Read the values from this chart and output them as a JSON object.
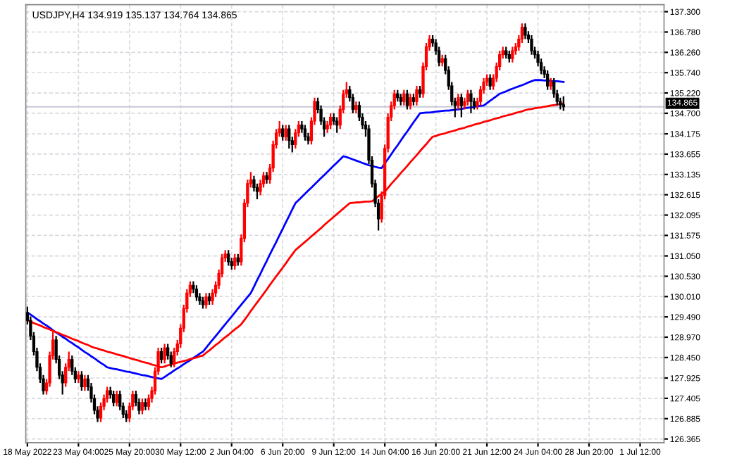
{
  "chart_data": {
    "type": "candlestick",
    "title": "USDJPY,H4 134.919 135.137 134.764 134.865",
    "categories": [
      "18 May 2022",
      null,
      null,
      null,
      null,
      null,
      null,
      null,
      null,
      null,
      null,
      null,
      null,
      null,
      null,
      null,
      "23 May 04:00",
      null,
      null,
      null,
      null,
      null,
      null,
      null,
      null,
      null,
      null,
      null,
      null,
      null,
      null,
      null,
      "25 May 20:00",
      null,
      null,
      null,
      null,
      null,
      null,
      null,
      null,
      null,
      null,
      null,
      null,
      null,
      null,
      null,
      "30 May 12:00",
      null,
      null,
      null,
      null,
      null,
      null,
      null,
      null,
      null,
      null,
      null,
      null,
      null,
      null,
      null,
      "2 Jun 04:00",
      null,
      null,
      null,
      null,
      null,
      null,
      null,
      null,
      null,
      null,
      null,
      null,
      null,
      null,
      null,
      "6 Jun 20:00",
      null,
      null,
      null,
      null,
      null,
      null,
      null,
      null,
      null,
      null,
      null,
      null,
      null,
      null,
      null,
      "9 Jun 12:00",
      null,
      null,
      null,
      null,
      null,
      null,
      null,
      null,
      null,
      null,
      null,
      null,
      null,
      null,
      null,
      "14 Jun 04:00",
      null,
      null,
      null,
      null,
      null,
      null,
      null,
      null,
      null,
      null,
      null,
      null,
      null,
      null,
      null,
      "16 Jun 20:00",
      null,
      null,
      null,
      null,
      null,
      null,
      null,
      null,
      null,
      null,
      null,
      null,
      null,
      null,
      null,
      "21 Jun 12:00",
      null,
      null,
      null,
      null,
      null,
      null,
      null,
      null,
      null,
      null,
      null,
      null,
      null,
      null,
      null,
      "24 Jun 04:00",
      null,
      null,
      null,
      null,
      null,
      null,
      null,
      null,
      null,
      null,
      null,
      null,
      null,
      null,
      null,
      "28 Jun 20:00",
      null,
      null,
      null,
      null,
      null,
      null,
      null,
      null,
      null,
      null,
      null,
      null,
      null,
      null,
      null,
      "1 Jul 12:00",
      null,
      null,
      null,
      null,
      null,
      null,
      null
    ],
    "colors": [
      "#000000",
      "#000000",
      "#000000",
      "#000000",
      "#000000",
      "#000000",
      "#ff0000",
      "#ff0000",
      "#ff0000",
      "#000000",
      "#000000",
      "#000000",
      "#ff0000",
      "#ff0000",
      "#000000",
      "#000000",
      "#ff0000",
      "#000000",
      "#ff0000",
      "#000000",
      "#000000",
      "#000000",
      "#000000",
      "#ff0000",
      "#ff0000",
      "#ff0000",
      "#000000",
      "#000000",
      "#ff0000",
      "#000000",
      "#000000",
      "#000000",
      "#ff0000",
      "#ff0000",
      "#000000",
      "#000000",
      "#ff0000",
      "#000000",
      "#ff0000",
      "#ff0000",
      "#ff0000",
      "#ff0000",
      "#000000",
      "#ff0000",
      "#000000",
      "#000000",
      "#ff0000",
      "#ff0000",
      "#ff0000",
      "#ff0000",
      "#ff0000",
      "#ff0000",
      "#000000",
      "#000000",
      "#000000",
      "#000000",
      "#ff0000",
      "#000000",
      "#ff0000",
      "#ff0000",
      "#ff0000",
      "#ff0000",
      "#ff0000",
      "#000000",
      "#000000",
      "#ff0000",
      "#000000",
      "#ff0000",
      "#ff0000",
      "#ff0000",
      "#ff0000",
      "#000000",
      "#000000",
      "#ff0000",
      "#ff0000",
      "#000000",
      "#ff0000",
      "#ff0000",
      "#ff0000",
      "#ff0000",
      "#000000",
      "#ff0000",
      "#000000",
      "#000000",
      "#ff0000",
      "#ff0000",
      "#000000",
      "#000000",
      "#000000",
      "#ff0000",
      "#ff0000",
      "#000000",
      "#000000",
      "#000000",
      "#ff0000",
      "#ff0000",
      "#000000",
      "#000000",
      "#ff0000",
      "#ff0000",
      "#ff0000",
      "#000000",
      "#000000",
      "#ff0000",
      "#000000",
      "#000000",
      "#000000",
      "#000000",
      "#000000",
      "#000000",
      "#000000",
      "#ff0000",
      "#ff0000",
      "#ff0000",
      "#ff0000",
      "#ff0000",
      "#000000",
      "#000000",
      "#ff0000",
      "#000000",
      "#ff0000",
      "#000000",
      "#ff0000",
      "#000000",
      "#ff0000",
      "#ff0000",
      "#ff0000",
      "#000000",
      "#000000",
      "#000000",
      "#ff0000",
      "#000000",
      "#000000",
      "#000000",
      "#000000",
      "#ff0000",
      "#000000",
      "#ff0000",
      "#ff0000",
      "#000000",
      "#000000",
      "#ff0000",
      "#ff0000",
      "#ff0000",
      "#ff0000",
      "#000000",
      "#ff0000",
      "#ff0000",
      "#ff0000",
      "#ff0000",
      "#000000",
      "#000000",
      "#ff0000",
      "#ff0000",
      "#ff0000",
      "#ff0000",
      "#000000",
      "#000000",
      "#000000",
      "#000000",
      "#000000",
      "#000000",
      "#000000",
      "#000000",
      "#ff0000",
      "#000000",
      "#000000",
      "#000000",
      "#000000",
      null,
      null,
      null,
      null,
      null,
      null,
      null,
      null,
      null,
      null,
      null,
      null,
      null,
      null,
      null,
      null,
      null,
      null,
      null,
      null,
      null,
      null,
      null,
      null,
      null,
      null,
      null,
      null,
      null,
      null,
      null
    ],
    "ohlc": [
      [
        129.6,
        129.75,
        129.3,
        129.4
      ],
      [
        129.4,
        129.5,
        128.9,
        129.0
      ],
      [
        129.0,
        129.1,
        128.5,
        128.6
      ],
      [
        128.6,
        128.7,
        128.1,
        128.2
      ],
      [
        128.2,
        128.3,
        127.8,
        127.9
      ],
      [
        127.9,
        128.0,
        127.5,
        127.6
      ],
      [
        127.6,
        127.9,
        127.5,
        127.8
      ],
      [
        127.8,
        128.6,
        127.7,
        128.5
      ],
      [
        128.5,
        129.1,
        128.4,
        128.9
      ],
      [
        128.9,
        129.0,
        128.3,
        128.4
      ],
      [
        128.4,
        128.5,
        127.9,
        128.0
      ],
      [
        128.0,
        128.1,
        127.5,
        127.8
      ],
      [
        127.8,
        128.3,
        127.7,
        128.2
      ],
      [
        128.2,
        128.6,
        128.1,
        128.4
      ],
      [
        128.4,
        128.5,
        128.0,
        128.1
      ],
      [
        128.1,
        128.2,
        127.8,
        127.9
      ],
      [
        127.9,
        128.1,
        127.8,
        128.0
      ],
      [
        128.0,
        128.1,
        127.6,
        127.7
      ],
      [
        127.7,
        128.0,
        127.6,
        127.9
      ],
      [
        127.9,
        128.0,
        127.6,
        127.7
      ],
      [
        127.7,
        127.8,
        127.3,
        127.4
      ],
      [
        127.4,
        127.5,
        127.0,
        127.1
      ],
      [
        127.1,
        127.2,
        126.8,
        126.9
      ],
      [
        126.9,
        127.3,
        126.8,
        127.2
      ],
      [
        127.2,
        127.5,
        127.1,
        127.4
      ],
      [
        127.4,
        127.7,
        127.3,
        127.6
      ],
      [
        127.6,
        127.7,
        127.4,
        127.5
      ],
      [
        127.5,
        127.6,
        127.2,
        127.3
      ],
      [
        127.3,
        127.6,
        127.2,
        127.5
      ],
      [
        127.5,
        127.6,
        127.1,
        127.2
      ],
      [
        127.2,
        127.3,
        126.9,
        127.0
      ],
      [
        127.0,
        127.1,
        126.8,
        126.9
      ],
      [
        126.9,
        127.3,
        126.8,
        127.2
      ],
      [
        127.2,
        127.6,
        127.1,
        127.5
      ],
      [
        127.5,
        127.6,
        127.2,
        127.3
      ],
      [
        127.3,
        127.4,
        127.0,
        127.1
      ],
      [
        127.1,
        127.4,
        127.0,
        127.3
      ],
      [
        127.3,
        127.4,
        127.1,
        127.2
      ],
      [
        127.2,
        127.5,
        127.1,
        127.4
      ],
      [
        127.4,
        127.7,
        127.3,
        127.6
      ],
      [
        127.6,
        128.2,
        127.5,
        128.1
      ],
      [
        128.1,
        128.7,
        128.0,
        128.6
      ],
      [
        128.6,
        128.7,
        128.3,
        128.4
      ],
      [
        128.4,
        128.8,
        128.3,
        128.7
      ],
      [
        128.7,
        128.8,
        128.4,
        128.5
      ],
      [
        128.5,
        128.6,
        128.2,
        128.3
      ],
      [
        128.3,
        128.7,
        128.2,
        128.6
      ],
      [
        128.6,
        128.9,
        128.5,
        128.8
      ],
      [
        128.8,
        129.3,
        128.7,
        129.2
      ],
      [
        129.2,
        129.8,
        129.1,
        129.7
      ],
      [
        129.7,
        130.2,
        129.6,
        130.1
      ],
      [
        130.1,
        130.4,
        130.0,
        130.3
      ],
      [
        130.3,
        130.4,
        130.1,
        130.2
      ],
      [
        130.2,
        130.3,
        129.9,
        130.0
      ],
      [
        130.0,
        130.1,
        129.8,
        129.9
      ],
      [
        129.9,
        130.0,
        129.7,
        129.8
      ],
      [
        129.8,
        130.1,
        129.7,
        130.0
      ],
      [
        130.0,
        130.1,
        129.8,
        129.9
      ],
      [
        129.9,
        130.2,
        129.8,
        130.1
      ],
      [
        130.1,
        130.4,
        130.0,
        130.3
      ],
      [
        130.3,
        130.7,
        130.2,
        130.6
      ],
      [
        130.6,
        131.1,
        130.5,
        131.0
      ],
      [
        131.0,
        131.2,
        130.9,
        131.1
      ],
      [
        131.1,
        131.2,
        130.8,
        130.9
      ],
      [
        130.9,
        131.0,
        130.7,
        130.8
      ],
      [
        130.8,
        131.1,
        130.7,
        131.0
      ],
      [
        131.0,
        131.1,
        130.8,
        130.9
      ],
      [
        130.9,
        131.6,
        130.8,
        131.5
      ],
      [
        131.5,
        132.5,
        131.4,
        132.4
      ],
      [
        132.4,
        133.0,
        132.3,
        132.9
      ],
      [
        132.9,
        133.2,
        132.8,
        133.0
      ],
      [
        133.0,
        133.1,
        132.7,
        132.8
      ],
      [
        132.8,
        132.9,
        132.5,
        132.7
      ],
      [
        132.7,
        133.0,
        132.6,
        132.9
      ],
      [
        132.9,
        133.2,
        132.8,
        133.1
      ],
      [
        133.1,
        133.2,
        132.9,
        133.0
      ],
      [
        133.0,
        133.4,
        132.9,
        133.3
      ],
      [
        133.3,
        134.0,
        133.2,
        133.9
      ],
      [
        133.9,
        134.3,
        133.8,
        134.2
      ],
      [
        134.2,
        134.5,
        134.1,
        134.3
      ],
      [
        134.3,
        134.4,
        134.0,
        134.1
      ],
      [
        134.1,
        134.4,
        134.0,
        134.3
      ],
      [
        134.3,
        134.4,
        133.8,
        134.0
      ],
      [
        134.0,
        134.1,
        133.7,
        133.9
      ],
      [
        133.9,
        134.3,
        133.8,
        134.2
      ],
      [
        134.2,
        134.5,
        134.1,
        134.4
      ],
      [
        134.4,
        134.5,
        134.2,
        134.3
      ],
      [
        134.3,
        134.4,
        134.0,
        134.1
      ],
      [
        134.1,
        134.2,
        133.9,
        134.0
      ],
      [
        134.0,
        134.6,
        133.9,
        134.5
      ],
      [
        134.5,
        135.1,
        134.4,
        135.0
      ],
      [
        135.0,
        135.1,
        134.7,
        134.8
      ],
      [
        134.8,
        134.9,
        134.4,
        134.5
      ],
      [
        134.5,
        134.6,
        134.1,
        134.3
      ],
      [
        134.3,
        134.5,
        134.2,
        134.4
      ],
      [
        134.4,
        134.7,
        134.3,
        134.6
      ],
      [
        134.6,
        134.7,
        134.4,
        134.5
      ],
      [
        134.5,
        134.6,
        134.2,
        134.4
      ],
      [
        134.4,
        134.9,
        134.3,
        134.8
      ],
      [
        134.8,
        135.3,
        134.7,
        135.2
      ],
      [
        135.2,
        135.5,
        135.1,
        135.3
      ],
      [
        135.3,
        135.4,
        135.0,
        135.1
      ],
      [
        135.1,
        135.2,
        134.7,
        134.8
      ],
      [
        134.8,
        135.0,
        134.7,
        134.9
      ],
      [
        134.9,
        135.0,
        134.5,
        134.6
      ],
      [
        134.6,
        134.7,
        134.3,
        134.4
      ],
      [
        134.4,
        134.5,
        134.1,
        134.3
      ],
      [
        134.3,
        134.4,
        133.4,
        133.5
      ],
      [
        133.5,
        133.6,
        132.8,
        132.9
      ],
      [
        132.9,
        133.0,
        132.3,
        132.4
      ],
      [
        132.4,
        132.5,
        131.7,
        132.0
      ],
      [
        132.0,
        132.7,
        131.9,
        132.6
      ],
      [
        132.6,
        133.9,
        132.5,
        133.8
      ],
      [
        133.8,
        134.7,
        133.7,
        134.6
      ],
      [
        134.6,
        135.0,
        134.5,
        134.9
      ],
      [
        134.9,
        135.3,
        134.8,
        135.2
      ],
      [
        135.2,
        135.3,
        135.0,
        135.1
      ],
      [
        135.1,
        135.2,
        134.9,
        135.0
      ],
      [
        135.0,
        135.3,
        134.9,
        135.2
      ],
      [
        135.2,
        135.3,
        134.8,
        134.9
      ],
      [
        134.9,
        135.2,
        134.8,
        135.1
      ],
      [
        135.1,
        135.2,
        134.9,
        135.0
      ],
      [
        135.0,
        135.4,
        134.9,
        135.3
      ],
      [
        135.3,
        135.4,
        135.1,
        135.2
      ],
      [
        135.2,
        136.0,
        135.1,
        135.9
      ],
      [
        135.9,
        136.5,
        135.8,
        136.4
      ],
      [
        136.4,
        136.7,
        136.3,
        136.6
      ],
      [
        136.6,
        136.7,
        136.4,
        136.5
      ],
      [
        136.5,
        136.6,
        136.2,
        136.3
      ],
      [
        136.3,
        136.4,
        135.9,
        136.0
      ],
      [
        136.0,
        136.2,
        135.9,
        136.1
      ],
      [
        136.1,
        136.2,
        135.7,
        135.8
      ],
      [
        135.8,
        135.9,
        135.3,
        135.4
      ],
      [
        135.4,
        135.5,
        134.9,
        135.0
      ],
      [
        135.0,
        135.1,
        134.6,
        134.9
      ],
      [
        134.9,
        135.2,
        134.8,
        135.1
      ],
      [
        135.1,
        135.2,
        134.6,
        134.9
      ],
      [
        134.9,
        135.1,
        134.8,
        135.0
      ],
      [
        135.0,
        135.3,
        134.9,
        135.2
      ],
      [
        135.2,
        135.3,
        134.7,
        135.0
      ],
      [
        135.0,
        135.1,
        134.8,
        134.9
      ],
      [
        134.9,
        135.1,
        134.8,
        135.0
      ],
      [
        135.0,
        135.4,
        134.9,
        135.3
      ],
      [
        135.3,
        135.6,
        135.2,
        135.5
      ],
      [
        135.5,
        135.7,
        135.4,
        135.6
      ],
      [
        135.6,
        135.7,
        135.3,
        135.4
      ],
      [
        135.4,
        135.7,
        135.3,
        135.6
      ],
      [
        135.6,
        136.0,
        135.5,
        135.9
      ],
      [
        135.9,
        136.3,
        135.8,
        136.2
      ],
      [
        136.2,
        136.4,
        136.1,
        136.3
      ],
      [
        136.3,
        136.4,
        136.1,
        136.2
      ],
      [
        136.2,
        136.3,
        136.0,
        136.1
      ],
      [
        136.1,
        136.4,
        136.0,
        136.3
      ],
      [
        136.3,
        136.5,
        136.2,
        136.4
      ],
      [
        136.4,
        136.7,
        136.3,
        136.6
      ],
      [
        136.6,
        137.0,
        136.5,
        136.9
      ],
      [
        136.9,
        137.0,
        136.6,
        136.7
      ],
      [
        136.7,
        136.8,
        136.5,
        136.6
      ],
      [
        136.6,
        136.7,
        136.2,
        136.3
      ],
      [
        136.3,
        136.4,
        136.1,
        136.2
      ],
      [
        136.2,
        136.3,
        135.9,
        136.0
      ],
      [
        136.0,
        136.1,
        135.7,
        135.8
      ],
      [
        135.8,
        135.9,
        135.6,
        135.7
      ],
      [
        135.7,
        135.8,
        135.3,
        135.4
      ],
      [
        135.4,
        135.6,
        135.3,
        135.5
      ],
      [
        135.5,
        135.6,
        135.1,
        135.2
      ],
      [
        135.2,
        135.3,
        134.9,
        135.0
      ],
      [
        135.0,
        135.1,
        134.8,
        134.92
      ],
      [
        134.919,
        135.137,
        134.764,
        134.865
      ],
      null,
      null,
      null,
      null,
      null,
      null,
      null,
      null,
      null,
      null,
      null,
      null,
      null,
      null,
      null,
      null,
      null,
      null,
      null,
      null,
      null,
      null,
      null,
      null,
      null,
      null,
      null,
      null,
      null,
      null,
      null
    ],
    "series": [
      {
        "type": "line",
        "color": "#0000ff",
        "values": [
          129.6,
          129.55,
          129.49,
          129.43,
          129.38,
          129.32,
          129.27,
          129.21,
          129.15,
          129.09,
          129.04,
          128.98,
          128.93,
          128.87,
          128.82,
          128.76,
          128.71,
          128.65,
          128.59,
          128.54,
          128.48,
          128.43,
          128.37,
          128.31,
          128.26,
          128.2,
          128.18,
          128.16,
          128.15,
          128.13,
          128.11,
          128.09,
          128.08,
          128.06,
          128.04,
          128.02,
          128.0,
          127.99,
          127.97,
          127.95,
          127.93,
          127.92,
          127.9,
          127.95,
          128.01,
          128.06,
          128.12,
          128.17,
          128.22,
          128.28,
          128.33,
          128.38,
          128.44,
          128.49,
          128.55,
          128.6,
          128.7,
          128.8,
          128.9,
          129.0,
          129.1,
          129.2,
          129.3,
          129.4,
          129.5,
          129.6,
          129.7,
          129.8,
          129.9,
          130.0,
          130.1,
          130.26,
          130.43,
          130.59,
          130.76,
          130.92,
          131.09,
          131.25,
          131.41,
          131.58,
          131.74,
          131.91,
          132.07,
          132.24,
          132.4,
          132.48,
          132.56,
          132.64,
          132.72,
          132.8,
          132.88,
          132.96,
          133.04,
          133.12,
          133.2,
          133.28,
          133.36,
          133.44,
          133.52,
          133.6,
          133.58,
          133.55,
          133.52,
          133.49,
          133.46,
          133.43,
          133.4,
          133.37,
          133.35,
          133.33,
          133.31,
          133.3,
          133.42,
          133.53,
          133.65,
          133.77,
          133.88,
          134.0,
          134.12,
          134.23,
          134.35,
          134.47,
          134.58,
          134.7,
          134.71,
          134.72,
          134.72,
          134.73,
          134.74,
          134.75,
          134.76,
          134.77,
          134.77,
          134.78,
          134.79,
          134.8,
          134.81,
          134.83,
          134.84,
          134.85,
          134.86,
          134.88,
          134.89,
          134.9,
          134.96,
          135.02,
          135.08,
          135.14,
          135.2,
          135.23,
          135.26,
          135.3,
          135.33,
          135.36,
          135.39,
          135.42,
          135.45,
          135.49,
          135.52,
          135.55,
          135.55,
          135.55,
          135.54,
          135.54,
          135.53,
          135.52,
          135.52,
          135.51,
          135.5,
          null,
          null,
          null,
          null,
          null,
          null,
          null,
          null,
          null,
          null,
          null,
          null,
          null,
          null,
          null,
          null,
          null,
          null,
          null,
          null,
          null,
          null,
          null,
          null,
          null,
          null,
          null,
          null,
          null,
          null,
          null
        ]
      },
      {
        "type": "line",
        "color": "#ff0000",
        "values": [
          129.4,
          129.37,
          129.33,
          129.3,
          129.27,
          129.23,
          129.2,
          129.17,
          129.13,
          129.1,
          129.07,
          129.03,
          129.0,
          128.97,
          128.93,
          128.9,
          128.87,
          128.83,
          128.8,
          128.77,
          128.73,
          128.7,
          128.68,
          128.65,
          128.63,
          128.6,
          128.58,
          128.56,
          128.53,
          128.51,
          128.49,
          128.46,
          128.44,
          128.41,
          128.39,
          128.37,
          128.34,
          128.32,
          128.3,
          128.27,
          128.25,
          128.22,
          128.2,
          128.22,
          128.25,
          128.27,
          128.29,
          128.32,
          128.34,
          128.36,
          128.38,
          128.41,
          128.43,
          128.45,
          128.48,
          128.5,
          128.57,
          128.63,
          128.7,
          128.77,
          128.83,
          128.9,
          128.97,
          129.03,
          129.1,
          129.17,
          129.23,
          129.3,
          129.41,
          129.52,
          129.64,
          129.75,
          129.86,
          129.97,
          130.08,
          130.19,
          130.31,
          130.42,
          130.53,
          130.64,
          130.75,
          130.86,
          130.98,
          131.09,
          131.2,
          131.27,
          131.34,
          131.41,
          131.48,
          131.55,
          131.62,
          131.69,
          131.76,
          131.84,
          131.91,
          131.98,
          132.05,
          132.12,
          132.19,
          132.26,
          132.33,
          132.4,
          132.41,
          132.42,
          132.42,
          132.43,
          132.44,
          132.44,
          132.45,
          132.51,
          132.58,
          132.64,
          132.7,
          132.79,
          132.89,
          132.98,
          133.07,
          133.17,
          133.26,
          133.35,
          133.45,
          133.54,
          133.63,
          133.73,
          133.82,
          133.91,
          134.01,
          134.1,
          134.12,
          134.15,
          134.17,
          134.19,
          134.22,
          134.24,
          134.26,
          134.29,
          134.31,
          134.33,
          134.36,
          134.38,
          134.41,
          134.43,
          134.45,
          134.48,
          134.5,
          134.52,
          134.55,
          134.57,
          134.59,
          134.62,
          134.64,
          134.66,
          134.68,
          134.71,
          134.73,
          134.75,
          134.78,
          134.8,
          134.81,
          134.83,
          134.84,
          134.85,
          134.87,
          134.88,
          134.9,
          134.91,
          134.92,
          134.94,
          134.95,
          null,
          null,
          null,
          null,
          null,
          null,
          null,
          null,
          null,
          null,
          null,
          null,
          null,
          null,
          null,
          null,
          null,
          null,
          null,
          null,
          null,
          null,
          null,
          null,
          null,
          null,
          null,
          null,
          null,
          null,
          null
        ]
      }
    ],
    "ylim": [
      126.27,
      137.48
    ],
    "yticks": [
      {
        "value": 137.3,
        "label": "137.300"
      },
      {
        "value": 136.78,
        "label": "136.780"
      },
      {
        "value": 136.26,
        "label": "136.260"
      },
      {
        "value": 135.74,
        "label": "135.740"
      },
      {
        "value": 135.22,
        "label": "135.220"
      },
      {
        "value": 134.7,
        "label": "134.700"
      },
      {
        "value": 134.175,
        "label": "134.175"
      },
      {
        "value": 133.655,
        "label": "133.655"
      },
      {
        "value": 133.135,
        "label": "133.135"
      },
      {
        "value": 132.615,
        "label": "132.615"
      },
      {
        "value": 132.095,
        "label": "132.095"
      },
      {
        "value": 131.575,
        "label": "131.575"
      },
      {
        "value": 131.05,
        "label": "131.050"
      },
      {
        "value": 130.53,
        "label": "130.530"
      },
      {
        "value": 130.01,
        "label": "130.010"
      },
      {
        "value": 129.49,
        "label": "129.490"
      },
      {
        "value": 128.97,
        "label": "128.970"
      },
      {
        "value": 128.45,
        "label": "128.450"
      },
      {
        "value": 127.925,
        "label": "127.925"
      },
      {
        "value": 127.405,
        "label": "127.405"
      },
      {
        "value": 126.885,
        "label": "126.885"
      },
      {
        "value": 126.365,
        "label": "126.365"
      }
    ],
    "ref_lines": [
      {
        "axis": "y",
        "value": 134.865,
        "label": "134.865",
        "color": "#c8c8d8"
      }
    ],
    "grid": true,
    "legend": false
  }
}
